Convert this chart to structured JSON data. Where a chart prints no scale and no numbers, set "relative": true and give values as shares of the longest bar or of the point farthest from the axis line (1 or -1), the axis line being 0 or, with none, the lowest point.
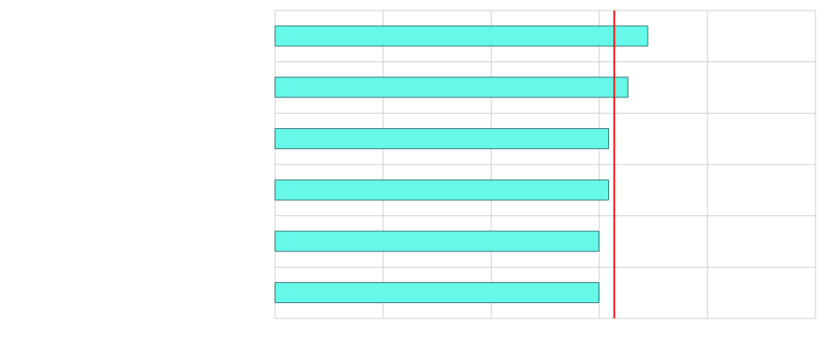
{
  "chart_data": {
    "type": "bar",
    "orientation": "horizontal",
    "relative": true,
    "categories": [
      null,
      null,
      null,
      null,
      null,
      null
    ],
    "values": [
      1,
      0.947,
      0.895,
      0.895,
      0.869,
      0.869
    ],
    "color": "#66f8e8",
    "ref_lines": [
      {
        "axis": "x",
        "value": 0.91,
        "color": "#ff0000"
      }
    ],
    "grid": true
  }
}
